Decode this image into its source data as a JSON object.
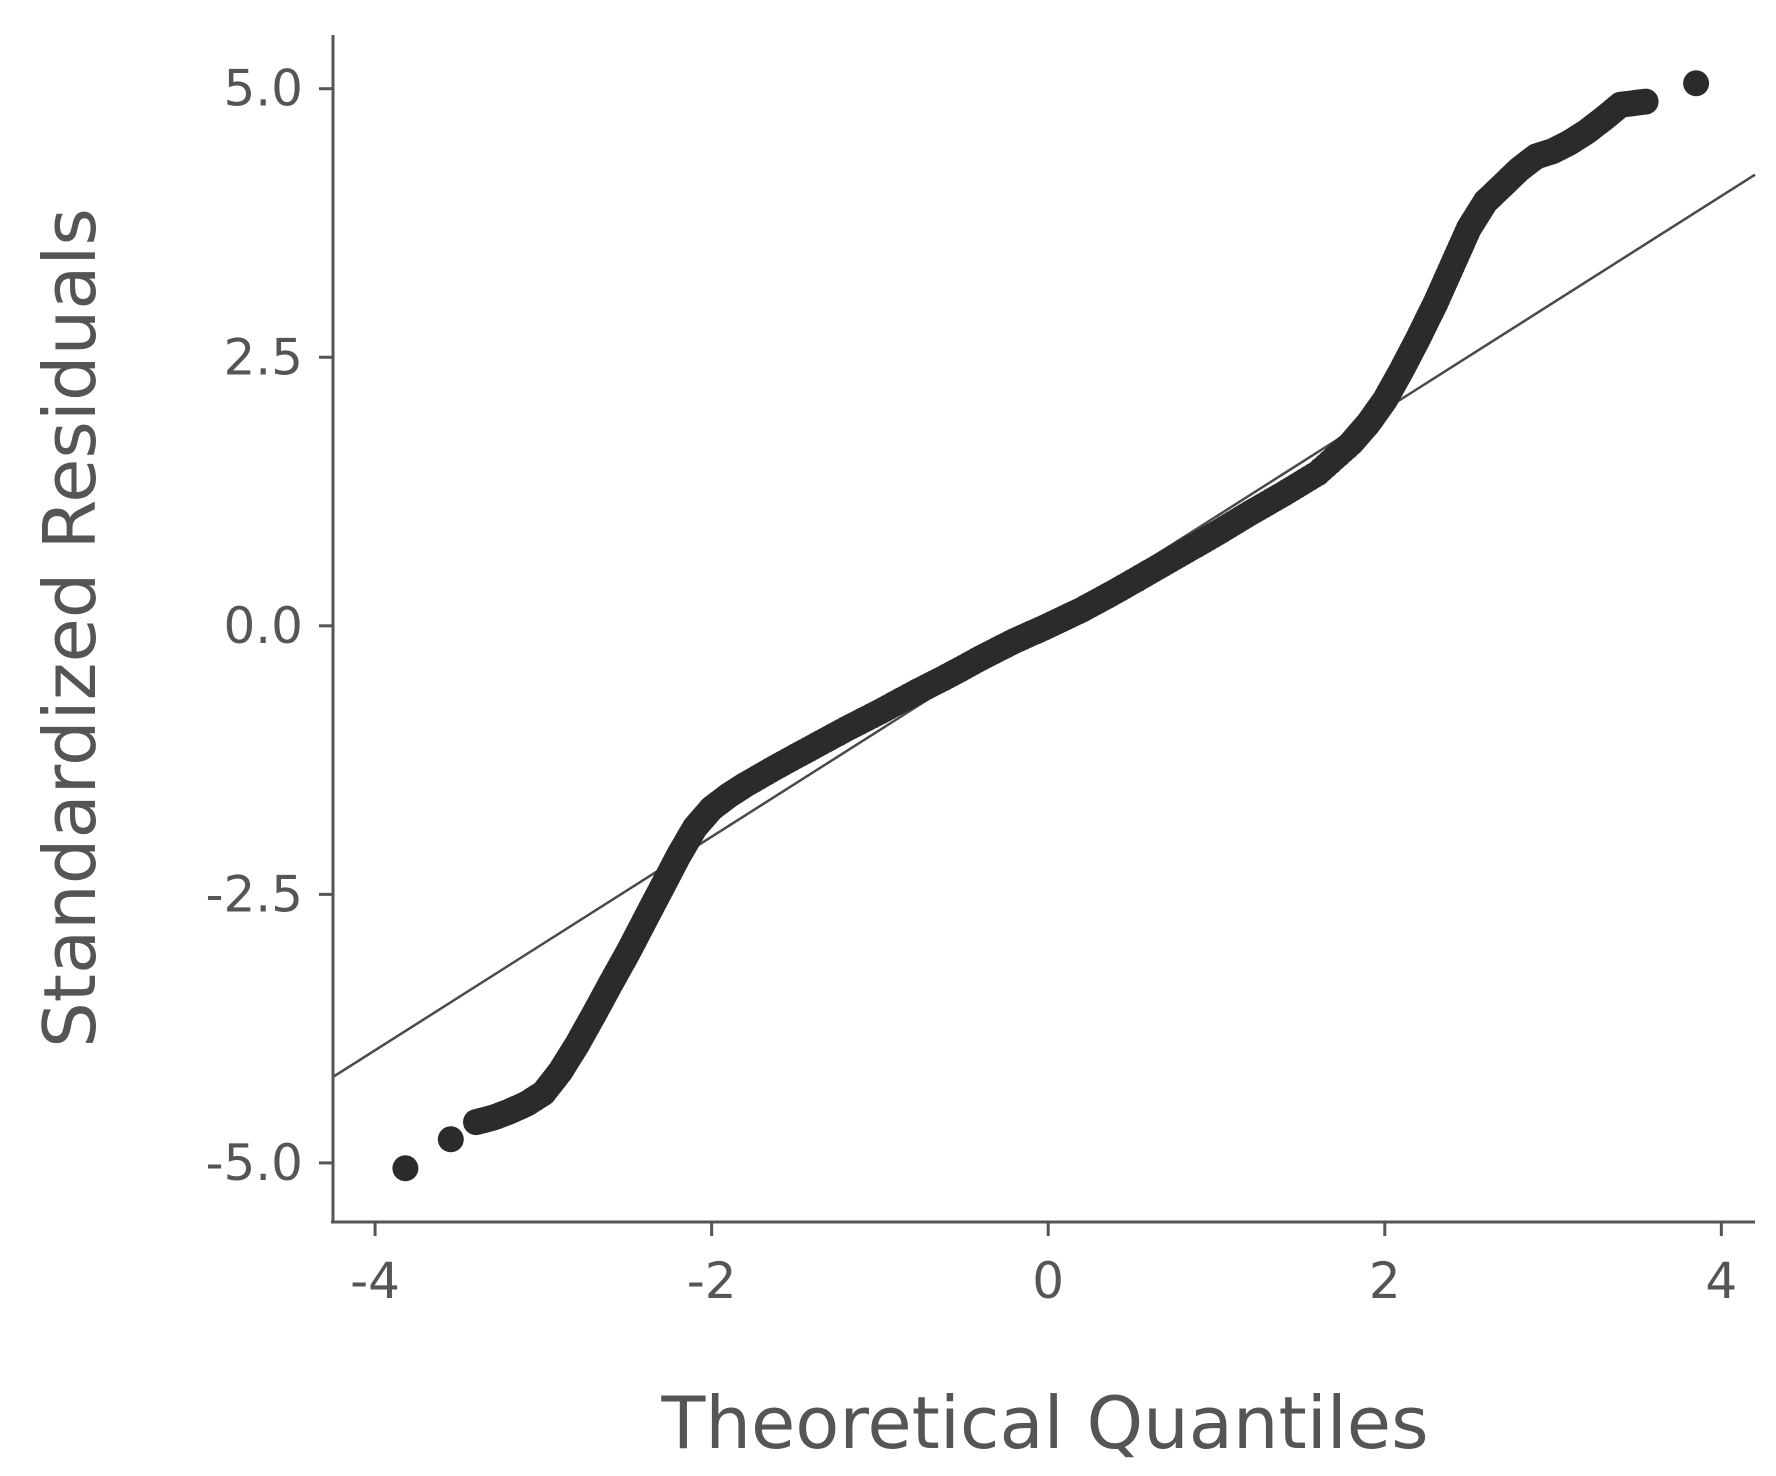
{
  "chart_data": {
    "type": "scatter",
    "title": "",
    "xlabel": "Theoretical Quantiles",
    "ylabel": "Standardized Residuals",
    "xlim": [
      -4.25,
      4.2
    ],
    "ylim": [
      -5.55,
      5.5
    ],
    "x_ticks": [
      -4,
      -2,
      0,
      2,
      4
    ],
    "x_tick_labels": [
      "-4",
      "-2",
      "0",
      "2",
      "4"
    ],
    "y_ticks": [
      -5.0,
      -2.5,
      0.0,
      2.5,
      5.0
    ],
    "y_tick_labels": [
      "-5.0",
      "-2.5",
      "0.0",
      "2.5",
      "5.0"
    ],
    "grid": false,
    "point_color": "#2b2b2b",
    "line_color": "#4a4a4a",
    "axis_color": "#555555",
    "reference_line": {
      "x": [
        -4.25,
        4.2
      ],
      "y": [
        -4.2,
        4.2
      ]
    },
    "series": [
      {
        "x": [
          -3.82,
          -3.55,
          -3.4,
          -3.3,
          -3.2,
          -3.1,
          -3.0,
          -2.9,
          -2.8,
          -2.7,
          -2.6,
          -2.5,
          -2.4,
          -2.3,
          -2.2,
          -2.1,
          -2.0,
          -1.9,
          -1.8,
          -1.6,
          -1.4,
          -1.2,
          -1.0,
          -0.8,
          -0.6,
          -0.4,
          -0.2,
          0.0,
          0.2,
          0.4,
          0.6,
          0.8,
          1.0,
          1.2,
          1.4,
          1.6,
          1.8,
          1.9,
          2.0,
          2.1,
          2.2,
          2.3,
          2.4,
          2.5,
          2.6,
          2.7,
          2.8,
          2.9,
          3.0,
          3.1,
          3.2,
          3.3,
          3.4,
          3.55,
          3.85
        ],
        "y": [
          -5.05,
          -4.78,
          -4.62,
          -4.58,
          -4.52,
          -4.45,
          -4.35,
          -4.15,
          -3.9,
          -3.62,
          -3.33,
          -3.05,
          -2.75,
          -2.45,
          -2.15,
          -1.88,
          -1.7,
          -1.58,
          -1.48,
          -1.3,
          -1.13,
          -0.96,
          -0.8,
          -0.63,
          -0.47,
          -0.3,
          -0.14,
          0.0,
          0.15,
          0.32,
          0.5,
          0.68,
          0.86,
          1.05,
          1.23,
          1.42,
          1.7,
          1.88,
          2.1,
          2.38,
          2.68,
          3.0,
          3.35,
          3.7,
          3.95,
          4.1,
          4.25,
          4.37,
          4.42,
          4.5,
          4.6,
          4.72,
          4.85,
          4.88,
          5.05
        ]
      }
    ]
  }
}
